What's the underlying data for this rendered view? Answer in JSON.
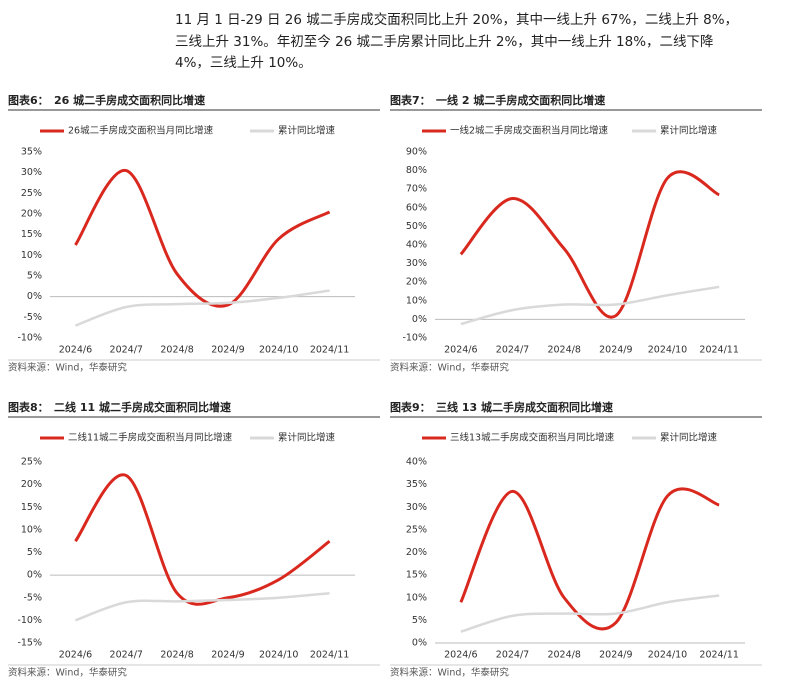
{
  "paragraph": [
    "11 月 1 日-29 日 26 城二手房成交面积同比上升 20%，其中一线上升 67%，二线上升 8%，",
    "三线上升 31%。年初至今 26 城二手房累计同比上升 2%，其中一线上升 18%，二线下降",
    "4%，三线上升 10%。"
  ],
  "chart_data": [
    {
      "type": "line",
      "label": "图表6：",
      "title": "26 城二手房成交面积同比增速",
      "source": "资料来源：Wind，华泰研究",
      "categories": [
        "2024/6",
        "2024/7",
        "2024/8",
        "2024/9",
        "2024/10",
        "2024/11"
      ],
      "series": [
        {
          "name": "26城二手房成交面积当月同比增速",
          "color": "#d9281e",
          "values": [
            12.5,
            30.5,
            5.5,
            -2,
            14,
            20.5
          ]
        },
        {
          "name": "累计同比增速",
          "color": "#d9d9d9",
          "values": [
            -7,
            -2.5,
            -1.8,
            -1.5,
            -0.3,
            1.5
          ]
        }
      ],
      "ylim": [
        -10,
        35
      ],
      "yticks": [
        {
          "value": -10,
          "label": "-10%"
        },
        {
          "value": -5,
          "label": "-5%"
        },
        {
          "value": 0,
          "label": "0%"
        },
        {
          "value": 5,
          "label": "5%"
        },
        {
          "value": 10,
          "label": "10%"
        },
        {
          "value": 15,
          "label": "15%"
        },
        {
          "value": 20,
          "label": "20%"
        },
        {
          "value": 25,
          "label": "25%"
        },
        {
          "value": 30,
          "label": "30%"
        },
        {
          "value": 35,
          "label": "35%"
        }
      ]
    },
    {
      "type": "line",
      "label": "图表7：",
      "title": "一线 2 城二手房成交面积同比增速",
      "source": "资料来源：Wind，华泰研究",
      "categories": [
        "2024/6",
        "2024/7",
        "2024/8",
        "2024/9",
        "2024/10",
        "2024/11"
      ],
      "series": [
        {
          "name": "一线2城二手房成交面积当月同比增速",
          "color": "#d9281e",
          "values": [
            35,
            65,
            38,
            2,
            76,
            67
          ]
        },
        {
          "name": "累计同比增速",
          "color": "#d9d9d9",
          "values": [
            -2.5,
            5,
            8,
            8,
            13,
            17.5
          ]
        }
      ],
      "ylim": [
        -10,
        90
      ],
      "yticks": [
        {
          "value": -10,
          "label": "-10%"
        },
        {
          "value": 0,
          "label": "0%"
        },
        {
          "value": 10,
          "label": "10%"
        },
        {
          "value": 20,
          "label": "20%"
        },
        {
          "value": 30,
          "label": "30%"
        },
        {
          "value": 40,
          "label": "40%"
        },
        {
          "value": 50,
          "label": "50%"
        },
        {
          "value": 60,
          "label": "60%"
        },
        {
          "value": 70,
          "label": "70%"
        },
        {
          "value": 80,
          "label": "80%"
        },
        {
          "value": 90,
          "label": "90%"
        }
      ]
    },
    {
      "type": "line",
      "label": "图表8：",
      "title": "二线 11 城二手房成交面积同比增速",
      "source": "资料来源：Wind，华泰研究",
      "categories": [
        "2024/6",
        "2024/7",
        "2024/8",
        "2024/9",
        "2024/10",
        "2024/11"
      ],
      "series": [
        {
          "name": "二线11城二手房成交面积当月同比增速",
          "color": "#d9281e",
          "values": [
            7.5,
            22,
            -4,
            -5,
            -1,
            7.5
          ]
        },
        {
          "name": "累计同比增速",
          "color": "#d9d9d9",
          "values": [
            -10,
            -6,
            -5.8,
            -5.5,
            -5,
            -4
          ]
        }
      ],
      "ylim": [
        -15,
        25
      ],
      "yticks": [
        {
          "value": -15,
          "label": "-15%"
        },
        {
          "value": -10,
          "label": "-10%"
        },
        {
          "value": -5,
          "label": "-5%"
        },
        {
          "value": 0,
          "label": "0%"
        },
        {
          "value": 5,
          "label": "5%"
        },
        {
          "value": 10,
          "label": "10%"
        },
        {
          "value": 15,
          "label": "15%"
        },
        {
          "value": 20,
          "label": "20%"
        },
        {
          "value": 25,
          "label": "25%"
        }
      ]
    },
    {
      "type": "line",
      "label": "图表9：",
      "title": "三线 13 城二手房成交面积同比增速",
      "source": "资料来源：Wind，华泰研究",
      "categories": [
        "2024/6",
        "2024/7",
        "2024/8",
        "2024/9",
        "2024/10",
        "2024/11"
      ],
      "series": [
        {
          "name": "三线13城二手房成交面积当月同比增速",
          "color": "#d9281e",
          "values": [
            9,
            33.5,
            10,
            4.5,
            32.5,
            30.5
          ]
        },
        {
          "name": "累计同比增速",
          "color": "#d9d9d9",
          "values": [
            2.5,
            6,
            6.5,
            6.5,
            9,
            10.5
          ]
        }
      ],
      "ylim": [
        0,
        40
      ],
      "yticks": [
        {
          "value": 0,
          "label": "0%"
        },
        {
          "value": 5,
          "label": "5%"
        },
        {
          "value": 10,
          "label": "10%"
        },
        {
          "value": 15,
          "label": "15%"
        },
        {
          "value": 20,
          "label": "20%"
        },
        {
          "value": 25,
          "label": "25%"
        },
        {
          "value": 30,
          "label": "30%"
        },
        {
          "value": 35,
          "label": "35%"
        },
        {
          "value": 40,
          "label": "40%"
        }
      ]
    }
  ]
}
